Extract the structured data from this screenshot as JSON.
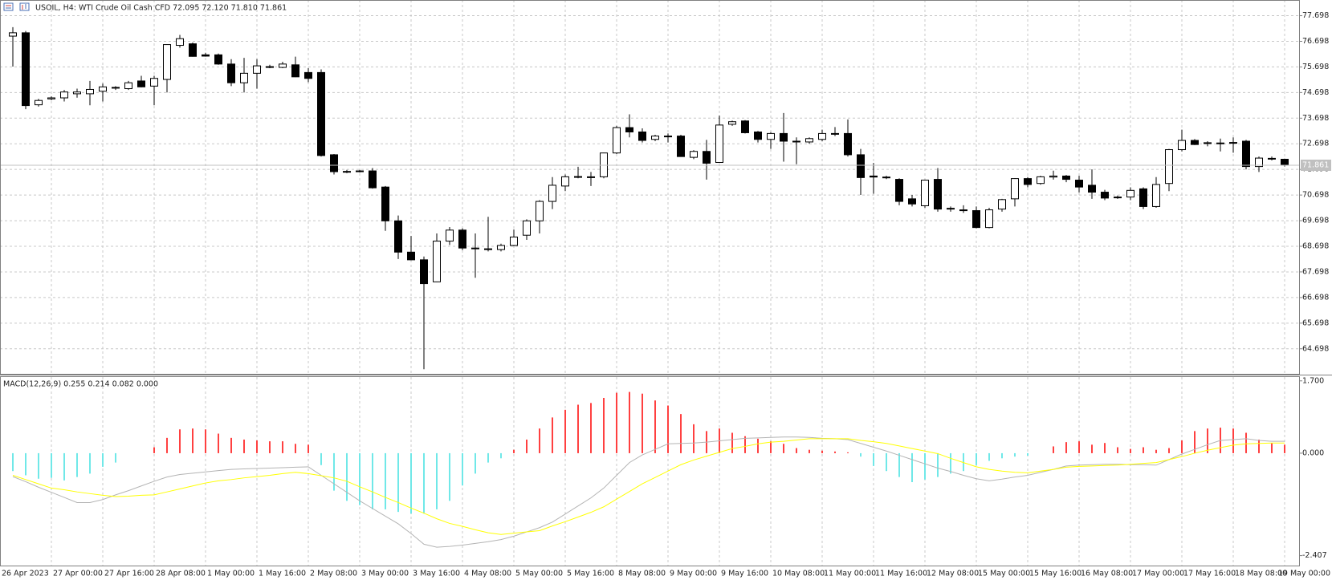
{
  "chart_data": [
    {
      "type": "candlestick",
      "title": "USOIL, H4:  WTI Crude Oil Cash CFD  72.095 72.120 71.810 71.861",
      "open": [
        76.9,
        77.03,
        74.22,
        74.45,
        74.49,
        74.65,
        74.65,
        74.75,
        74.9,
        74.85,
        75.15,
        74.95,
        75.21,
        76.54,
        76.6,
        76.17,
        76.17,
        75.81,
        75.08,
        75.45,
        75.71,
        75.68,
        75.78,
        75.48,
        75.48,
        72.27,
        71.62,
        71.62,
        71.64,
        71.01,
        69.69,
        68.47,
        68.17,
        67.31,
        68.9,
        69.33,
        68.63,
        68.6,
        68.57,
        68.73,
        69.13,
        69.69,
        70.45,
        71.05,
        71.4,
        71.41,
        71.41,
        72.34,
        73.33,
        73.16,
        72.87,
        73.0,
        73.0,
        72.17,
        72.4,
        71.97,
        73.46,
        73.59,
        73.16,
        72.87,
        73.1,
        72.8,
        72.77,
        72.87,
        73.1,
        73.1,
        72.27,
        71.44,
        71.4,
        71.31,
        70.55,
        70.28,
        71.31,
        70.18,
        70.12,
        70.09,
        69.43,
        70.15,
        70.55,
        71.34,
        71.15,
        71.4,
        71.44,
        71.28,
        71.08,
        70.81,
        70.62,
        70.62,
        70.94,
        70.25,
        71.15,
        72.47,
        72.83,
        72.74,
        72.73,
        72.73,
        72.8,
        71.81,
        72.12,
        72.095
      ],
      "high": [
        77.25,
        77.1,
        74.45,
        74.55,
        74.8,
        74.85,
        75.15,
        75.05,
        74.95,
        75.15,
        75.35,
        75.35,
        76.57,
        76.95,
        76.65,
        76.25,
        76.22,
        76.0,
        76.05,
        76.0,
        75.78,
        75.9,
        76.1,
        75.65,
        75.6,
        72.3,
        71.68,
        71.68,
        71.75,
        71.05,
        69.9,
        69.1,
        68.3,
        69.2,
        69.45,
        69.4,
        69.2,
        69.85,
        68.8,
        69.35,
        69.75,
        70.5,
        71.4,
        71.5,
        71.8,
        71.6,
        72.35,
        73.4,
        73.85,
        73.3,
        73.05,
        73.1,
        73.05,
        72.45,
        72.85,
        73.8,
        73.6,
        73.62,
        73.2,
        73.15,
        73.9,
        72.95,
        72.95,
        73.25,
        73.35,
        73.65,
        72.5,
        71.95,
        71.45,
        71.35,
        70.7,
        71.3,
        71.75,
        70.25,
        70.3,
        70.25,
        70.2,
        70.55,
        71.35,
        71.4,
        71.45,
        71.65,
        71.48,
        71.45,
        71.7,
        70.9,
        70.68,
        71.0,
        71.0,
        71.4,
        72.5,
        73.25,
        72.88,
        72.8,
        72.9,
        72.95,
        72.85,
        72.2,
        72.2,
        72.12
      ],
      "low": [
        75.71,
        74.05,
        74.15,
        74.4,
        74.35,
        74.5,
        74.2,
        74.35,
        74.8,
        74.8,
        74.9,
        74.2,
        74.7,
        76.45,
        76.1,
        76.1,
        75.78,
        74.95,
        74.7,
        74.85,
        75.65,
        75.65,
        75.3,
        75.1,
        72.2,
        71.5,
        71.55,
        71.58,
        70.95,
        69.3,
        68.2,
        68.15,
        63.9,
        67.3,
        68.75,
        68.55,
        67.47,
        68.5,
        68.5,
        68.7,
        68.95,
        69.2,
        70.15,
        70.85,
        71.35,
        71.05,
        71.35,
        72.3,
        72.95,
        72.75,
        72.8,
        72.75,
        72.2,
        72.1,
        71.3,
        71.95,
        73.4,
        73.1,
        72.75,
        72.5,
        72.0,
        71.9,
        72.7,
        72.8,
        73.0,
        72.2,
        70.7,
        70.75,
        71.32,
        70.3,
        70.25,
        70.2,
        70.05,
        70.05,
        70.0,
        69.4,
        69.4,
        70.05,
        70.25,
        71.0,
        71.1,
        71.3,
        71.2,
        70.8,
        70.55,
        70.5,
        70.55,
        70.5,
        70.15,
        70.2,
        70.85,
        72.4,
        72.65,
        72.6,
        72.4,
        72.35,
        71.7,
        71.6,
        72.05,
        71.81
      ],
      "close": [
        77.03,
        74.19,
        74.39,
        74.49,
        74.72,
        74.72,
        74.82,
        74.92,
        74.88,
        75.08,
        74.92,
        75.25,
        76.57,
        76.8,
        76.11,
        76.12,
        75.81,
        75.08,
        75.45,
        75.74,
        75.7,
        75.81,
        75.31,
        75.25,
        72.24,
        71.61,
        71.6,
        71.64,
        70.98,
        69.69,
        68.47,
        68.17,
        67.24,
        68.9,
        69.33,
        68.63,
        68.6,
        68.57,
        68.73,
        69.06,
        69.69,
        70.45,
        71.08,
        71.41,
        71.42,
        71.4,
        72.34,
        73.33,
        73.16,
        72.83,
        73.0,
        72.97,
        72.2,
        72.4,
        71.94,
        73.43,
        73.56,
        73.13,
        72.87,
        73.1,
        72.8,
        72.78,
        72.9,
        73.1,
        73.08,
        72.27,
        71.38,
        71.4,
        71.38,
        70.45,
        70.35,
        71.28,
        70.15,
        70.15,
        70.09,
        69.43,
        70.12,
        70.52,
        71.34,
        71.11,
        71.41,
        71.44,
        71.31,
        71.01,
        70.81,
        70.58,
        70.6,
        70.88,
        70.25,
        71.11,
        72.47,
        72.83,
        72.67,
        72.73,
        72.72,
        72.75,
        71.81,
        72.14,
        72.13,
        71.861
      ],
      "up_color": "#ffffff",
      "down_color": "#000000",
      "wick_color": "#000000",
      "last_price_color": "#c0c0c0",
      "ylim": [
        63.72,
        78.31
      ],
      "yticks": [
        77.698,
        76.698,
        75.698,
        74.698,
        73.698,
        72.698,
        71.698,
        70.698,
        69.698,
        68.698,
        67.698,
        66.698,
        65.698,
        64.698
      ],
      "grid": true
    },
    {
      "type": "macd",
      "title": "MACD(12,26,9) 0.255 0.214 0.082 0.000",
      "histogram": {
        "positive_color": "#ff0000",
        "negative_color": "#40e0e0",
        "values": [
          -0.42,
          -0.52,
          -0.6,
          -0.58,
          -0.64,
          -0.56,
          -0.48,
          -0.32,
          -0.22,
          0,
          0,
          0.14,
          0.36,
          0.56,
          0.58,
          0.56,
          0.46,
          0.36,
          0.32,
          0.3,
          0.28,
          0.28,
          0.22,
          0.2,
          -0.28,
          -0.88,
          -1.12,
          -1.22,
          -1.32,
          -1.32,
          -1.38,
          -1.42,
          -1.42,
          -1.32,
          -1.12,
          -0.76,
          -0.48,
          -0.22,
          -0.12,
          0.08,
          0.32,
          0.58,
          0.84,
          1.02,
          1.14,
          1.18,
          1.3,
          1.42,
          1.44,
          1.4,
          1.24,
          1.12,
          0.92,
          0.68,
          0.52,
          0.58,
          0.48,
          0.4,
          0.34,
          0.28,
          0.22,
          0.12,
          0.08,
          0.06,
          0.04,
          0.02,
          -0.08,
          -0.3,
          -0.42,
          -0.56,
          -0.68,
          -0.62,
          -0.56,
          -0.48,
          -0.42,
          -0.28,
          -0.18,
          -0.12,
          -0.08,
          -0.06,
          0,
          0.16,
          0.26,
          0.28,
          0.2,
          0.24,
          0.14,
          0.1,
          0.14,
          0.08,
          0.12,
          0.3,
          0.52,
          0.58,
          0.6,
          0.58,
          0.48,
          0.32,
          0.24,
          0.2
        ]
      },
      "series": [
        {
          "color": "#b4b4b4",
          "values": [
            -0.55,
            -0.67,
            -0.8,
            -0.92,
            -1.04,
            -1.16,
            -1.16,
            -1.09,
            -0.98,
            -0.88,
            -0.77,
            -0.66,
            -0.56,
            -0.5,
            -0.47,
            -0.44,
            -0.41,
            -0.38,
            -0.37,
            -0.36,
            -0.35,
            -0.34,
            -0.33,
            -0.32,
            -0.52,
            -0.72,
            -0.92,
            -1.12,
            -1.3,
            -1.48,
            -1.66,
            -1.89,
            -2.14,
            -2.21,
            -2.19,
            -2.16,
            -2.12,
            -2.08,
            -2.03,
            -1.95,
            -1.85,
            -1.75,
            -1.62,
            -1.43,
            -1.24,
            -1.05,
            -0.82,
            -0.52,
            -0.22,
            -0.04,
            0.09,
            0.22,
            0.23,
            0.24,
            0.26,
            0.29,
            0.32,
            0.35,
            0.36,
            0.37,
            0.38,
            0.38,
            0.37,
            0.35,
            0.34,
            0.32,
            0.23,
            0.14,
            0.05,
            -0.05,
            -0.15,
            -0.25,
            -0.35,
            -0.43,
            -0.52,
            -0.6,
            -0.65,
            -0.61,
            -0.56,
            -0.52,
            -0.45,
            -0.38,
            -0.3,
            -0.28,
            -0.27,
            -0.26,
            -0.26,
            -0.27,
            -0.27,
            -0.28,
            -0.15,
            -0.02,
            0.09,
            0.2,
            0.3,
            0.32,
            0.34,
            0.3,
            0.28,
            0.28
          ]
        },
        {
          "color": "#ffff00",
          "values": [
            -0.52,
            -0.62,
            -0.72,
            -0.82,
            -0.86,
            -0.91,
            -0.95,
            -0.99,
            -1.02,
            -1.01,
            -0.99,
            -0.98,
            -0.91,
            -0.84,
            -0.77,
            -0.7,
            -0.65,
            -0.62,
            -0.58,
            -0.55,
            -0.52,
            -0.48,
            -0.45,
            -0.48,
            -0.53,
            -0.58,
            -0.66,
            -0.79,
            -0.91,
            -1.04,
            -1.16,
            -1.29,
            -1.41,
            -1.54,
            -1.65,
            -1.72,
            -1.8,
            -1.87,
            -1.91,
            -1.88,
            -1.85,
            -1.82,
            -1.71,
            -1.61,
            -1.5,
            -1.39,
            -1.26,
            -1.08,
            -0.9,
            -0.72,
            -0.57,
            -0.42,
            -0.27,
            -0.16,
            -0.07,
            0.02,
            0.11,
            0.16,
            0.22,
            0.26,
            0.28,
            0.31,
            0.34,
            0.34,
            0.34,
            0.34,
            0.3,
            0.27,
            0.23,
            0.17,
            0.11,
            0.05,
            -0.01,
            -0.12,
            -0.22,
            -0.32,
            -0.38,
            -0.42,
            -0.45,
            -0.46,
            -0.42,
            -0.38,
            -0.33,
            -0.31,
            -0.3,
            -0.29,
            -0.28,
            -0.26,
            -0.24,
            -0.22,
            -0.15,
            -0.08,
            0.0,
            0.07,
            0.13,
            0.19,
            0.22,
            0.23,
            0.24,
            0.24
          ]
        }
      ],
      "ylim": [
        -2.66,
        1.79
      ],
      "yticks": [
        {
          "value": 1.7,
          "label": "1.700"
        },
        {
          "value": 0,
          "label": "0.000"
        },
        {
          "value": -2.407,
          "label": "-2.407"
        }
      ],
      "x_labels": [
        "26 Apr 2023",
        "27 Apr 00:00",
        "27 Apr 16:00",
        "28 Apr 08:00",
        "1 May 00:00",
        "1 May 16:00",
        "2 May 08:00",
        "3 May 00:00",
        "3 May 16:00",
        "4 May 08:00",
        "5 May 00:00",
        "5 May 16:00",
        "8 May 08:00",
        "9 May 00:00",
        "9 May 16:00",
        "10 May 08:00",
        "11 May 00:00",
        "11 May 16:00",
        "12 May 08:00",
        "15 May 00:00",
        "15 May 16:00",
        "16 May 08:00",
        "17 May 00:00",
        "17 May 16:00",
        "18 May 08:00",
        "19 May 00:00"
      ]
    }
  ]
}
